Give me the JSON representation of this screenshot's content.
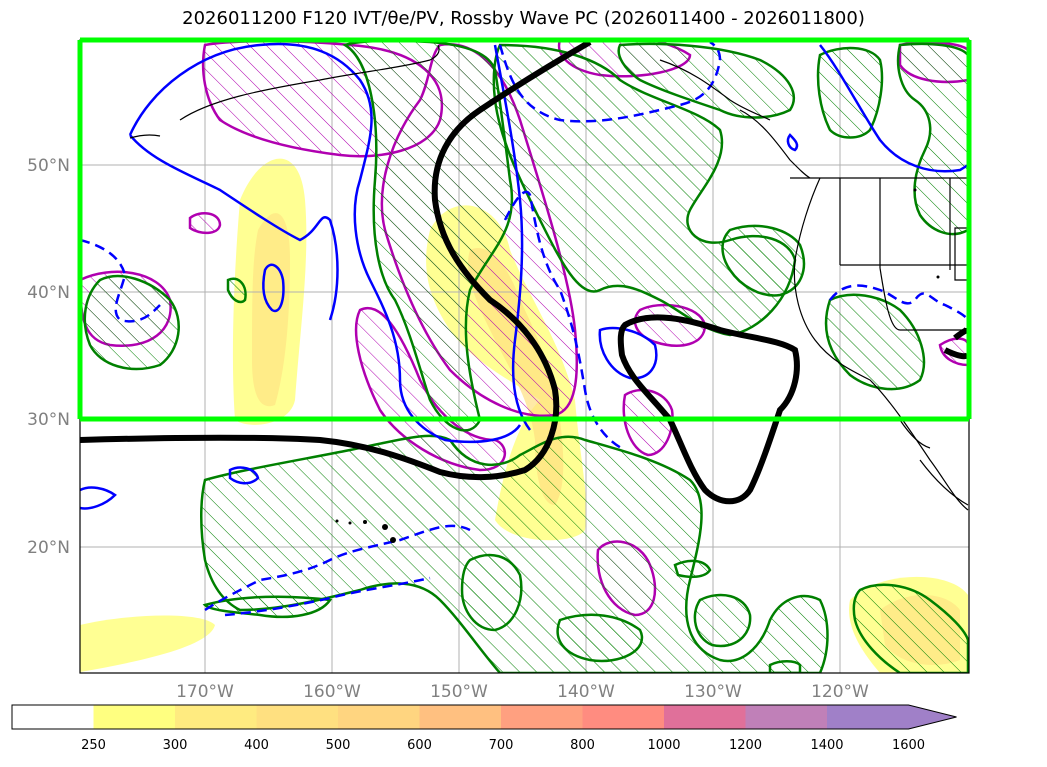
{
  "title": "2026011200 F120 IVT/θe/PV, Rossby Wave PC (2026011400 - 2026011800)",
  "map": {
    "lat_labels": [
      "50°N",
      "40°N",
      "30°N",
      "20°N"
    ],
    "lon_labels": [
      "170°W",
      "160°W",
      "150°W",
      "140°W",
      "130°W",
      "120°W"
    ],
    "colors": {
      "highlight_box": "#00ff00",
      "pc_contour": "#000000",
      "theta_e_contour": "#0000ff",
      "pv_contour": "#b000b0",
      "green_contour": "#008000",
      "ivt_low": "#ffff80",
      "ivt_mid": "#ffe080",
      "gridline": "#b0b0b0"
    }
  },
  "colorbar": {
    "labels": [
      "250",
      "300",
      "400",
      "500",
      "600",
      "700",
      "800",
      "1000",
      "1200",
      "1400",
      "1600"
    ],
    "colors": [
      "#ffffff",
      "#ffff80",
      "#ffeb80",
      "#ffe080",
      "#ffd580",
      "#ffc080",
      "#ffa080",
      "#ff8c80",
      "#e0709a",
      "#c080b8",
      "#a080c8",
      "#a080c8"
    ]
  }
}
